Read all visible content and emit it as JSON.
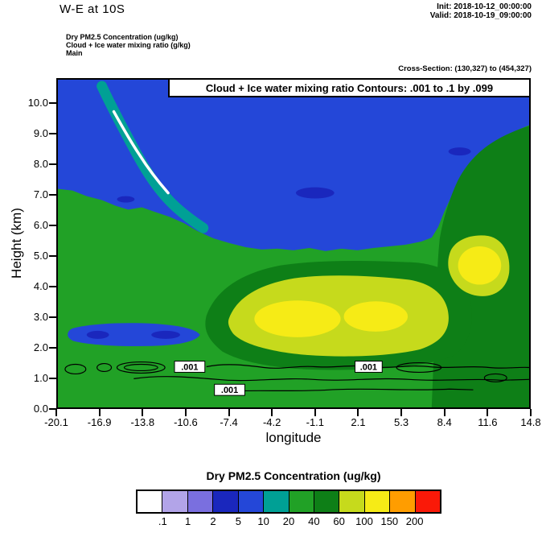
{
  "header": {
    "title": "W-E at 10S",
    "init_line": "Init: 2018-10-12_00:00:00",
    "valid_line": "Valid: 2018-10-19_09:00:00",
    "legend_lines": [
      "Dry PM2.5 Concentration   (ug/kg)",
      "Cloud + Ice water mixing ratio   (g/kg)",
      "Main"
    ],
    "cross_section": "Cross-Section: (130,327) to (454,327)"
  },
  "plot": {
    "banner": "Cloud + Ice water mixing ratio Contours: .001 to .1 by .099",
    "ylabel": "Height (km)",
    "xlabel": "longitude",
    "yticks": [
      "0.0",
      "1.0",
      "2.0",
      "3.0",
      "4.0",
      "5.0",
      "6.0",
      "7.0",
      "8.0",
      "9.0",
      "10.0"
    ],
    "xticks": [
      "-20.1",
      "-16.9",
      "-13.8",
      "-10.6",
      "-7.4",
      "-4.2",
      "-1.1",
      "2.1",
      "5.3",
      "8.4",
      "11.6",
      "14.8"
    ],
    "contour_labels": [
      ".001",
      ".001",
      ".001"
    ]
  },
  "colorbar": {
    "title": "Dry PM2.5 Concentration  (ug/kg)",
    "labels": [
      ".1",
      "1",
      "2",
      "5",
      "10",
      "20",
      "40",
      "60",
      "100",
      "150",
      "200"
    ],
    "colors": [
      "#ffffff",
      "#b2a4e8",
      "#7a6fdf",
      "#1a27bd",
      "#2447d8",
      "#00a095",
      "#21a126",
      "#0e7f17",
      "#c6da1c",
      "#f6eb16",
      "#ff9d00",
      "#fa1908"
    ]
  },
  "chart_data": {
    "type": "heatmap",
    "title": "W-E at 10S",
    "xlabel": "longitude",
    "ylabel": "Height (km)",
    "unit": "ug/kg",
    "x": [
      -20.1,
      -16.9,
      -13.8,
      -10.6,
      -7.4,
      -4.2,
      -1.1,
      2.1,
      5.3,
      8.4,
      11.6,
      14.8
    ],
    "y": [
      0.5,
      1.5,
      2.5,
      3.5,
      4.5,
      5.5,
      6.5,
      7.5,
      8.5,
      9.5,
      10.5
    ],
    "ylim": [
      0.0,
      10.8
    ],
    "values_note": "Approximate Dry PM2.5 concentration (ug/kg) read from the filled-contour colors; rows ordered bottom (0.5 km) to top (10.5 km)",
    "values": [
      [
        25,
        25,
        25,
        25,
        30,
        30,
        30,
        30,
        35,
        35,
        50,
        55
      ],
      [
        25,
        25,
        25,
        30,
        40,
        50,
        50,
        50,
        50,
        40,
        40,
        50
      ],
      [
        10,
        8,
        10,
        30,
        60,
        100,
        90,
        60,
        60,
        40,
        35,
        40
      ],
      [
        25,
        25,
        30,
        40,
        80,
        110,
        110,
        80,
        120,
        80,
        40,
        35
      ],
      [
        25,
        25,
        25,
        30,
        50,
        70,
        80,
        50,
        120,
        50,
        35,
        35
      ],
      [
        25,
        25,
        25,
        25,
        25,
        20,
        15,
        8,
        30,
        25,
        30,
        35
      ],
      [
        25,
        25,
        15,
        8,
        8,
        4,
        8,
        8,
        8,
        8,
        25,
        30
      ],
      [
        25,
        12,
        8,
        15,
        8,
        8,
        8,
        8,
        8,
        8,
        25,
        30
      ],
      [
        8,
        8,
        8,
        15,
        8,
        8,
        8,
        8,
        8,
        8,
        8,
        30
      ],
      [
        8,
        8,
        8,
        15,
        8,
        8,
        8,
        8,
        8,
        8,
        8,
        8
      ],
      [
        8,
        8,
        15,
        8,
        8,
        8,
        8,
        8,
        8,
        8,
        8,
        8
      ]
    ],
    "fill_levels": [
      0.1,
      1,
      2,
      5,
      10,
      20,
      40,
      60,
      100,
      150,
      200
    ],
    "palette": [
      "#ffffff",
      "#b2a4e8",
      "#7a6fdf",
      "#1a27bd",
      "#2447d8",
      "#00a095",
      "#21a126",
      "#0e7f17",
      "#c6da1c",
      "#f6eb16",
      "#ff9d00",
      "#fa1908"
    ],
    "contour_overlay": {
      "variable": "Cloud + Ice water mixing ratio (g/kg)",
      "levels": [
        0.001,
        0.1
      ],
      "step": 0.099,
      "visible_labels": [
        ".001",
        ".001",
        ".001"
      ]
    }
  }
}
